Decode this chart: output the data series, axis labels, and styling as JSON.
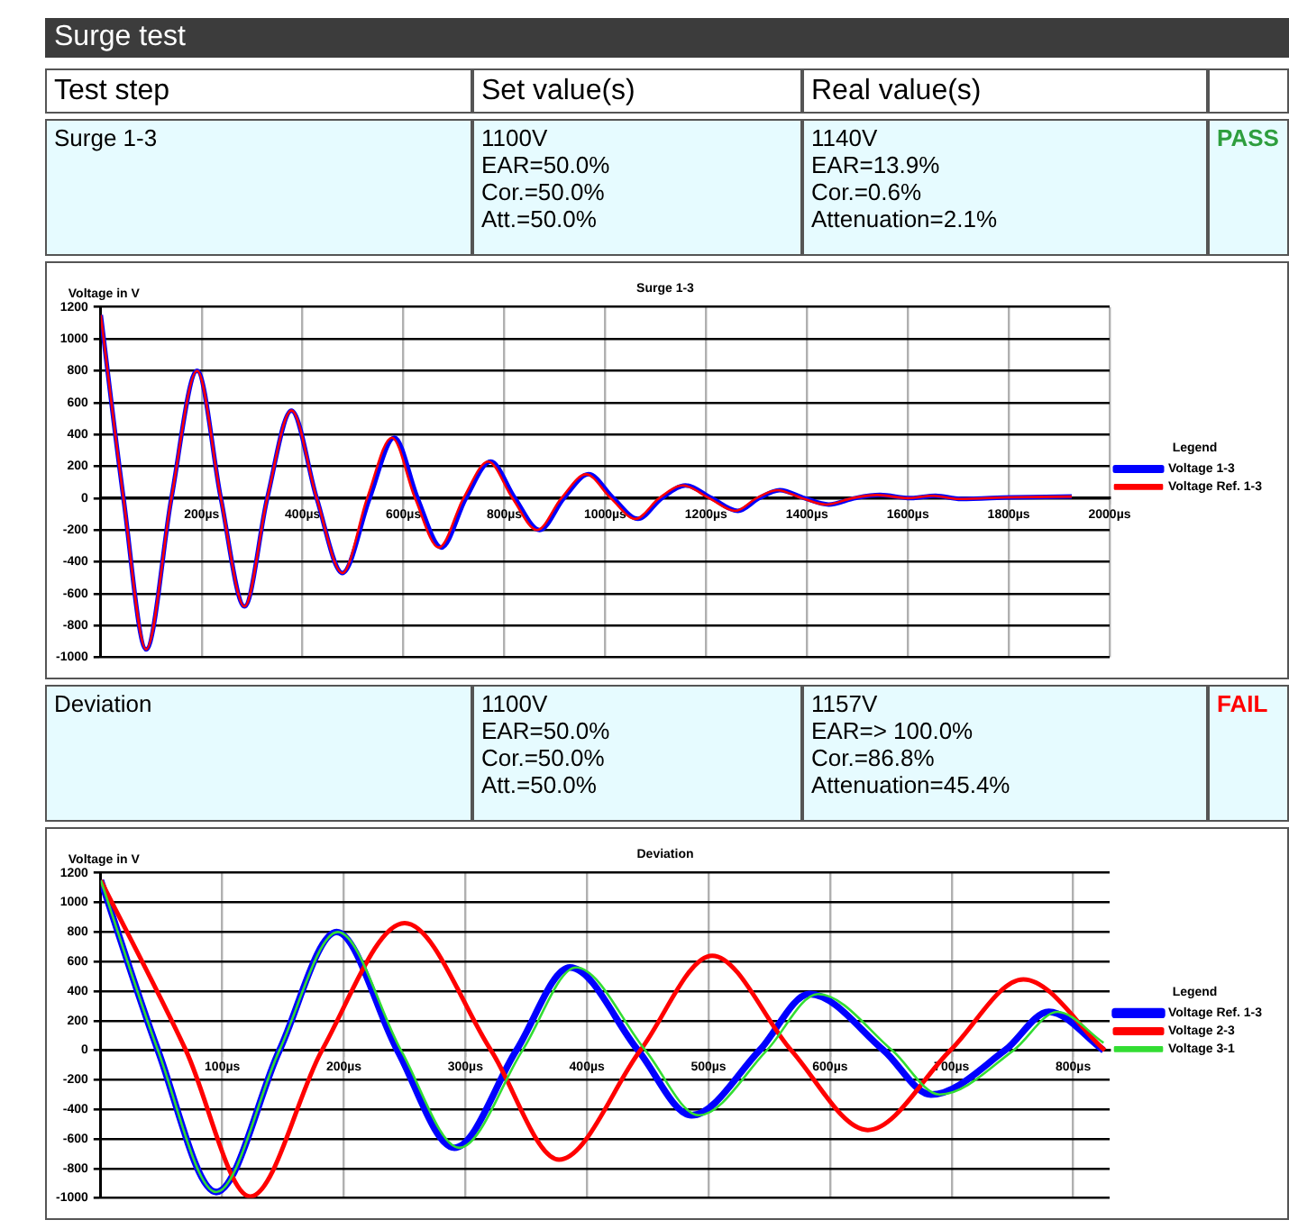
{
  "chart_data": [
    {
      "type": "other",
      "title": "Surge test",
      "categories": [
        "Test step",
        "Set value(s)",
        "Real value(s)",
        null
      ],
      "annotations": [
        "Surge 1-3",
        "1100V\nEAR=50.0%\nCor.=50.0%\nAtt.=50.0%",
        "1140V\nEAR=13.9%\nCor.=0.6%\nAttenuation=2.1%",
        "PASS"
      ],
      "colors": [
        null,
        null,
        null,
        "#2e9e3e"
      ]
    },
    {
      "type": "line",
      "title": "Surge 1-3",
      "ylabel": "Voltage in V",
      "legend_title": "Legend",
      "legend": "right",
      "grid": true,
      "xlim": [
        0,
        2000
      ],
      "xticks": [
        {
          "value": 200,
          "label": "200µs"
        },
        {
          "value": 400,
          "label": "400µs"
        },
        {
          "value": 600,
          "label": "600µs"
        },
        {
          "value": 800,
          "label": "800µs"
        },
        {
          "value": 1000,
          "label": "1000µs"
        },
        {
          "value": 1200,
          "label": "1200µs"
        },
        {
          "value": 1400,
          "label": "1400µs"
        },
        {
          "value": 1600,
          "label": "1600µs"
        },
        {
          "value": 1800,
          "label": "1800µs"
        },
        {
          "value": 2000,
          "label": "2000µs"
        }
      ],
      "ylim": [
        -1000,
        1200
      ],
      "yticks": [
        -1000,
        -800,
        -600,
        -400,
        -200,
        0,
        200,
        400,
        600,
        800,
        1000,
        1200
      ],
      "series": [
        {
          "name": "Voltage 1-3",
          "color": "#0000ff",
          "x": [
            0,
            45,
            90,
            140,
            191,
            238,
            285,
            330,
            378,
            428,
            479,
            533,
            582,
            628,
            675,
            724,
            773,
            821,
            870,
            918,
            967,
            1016,
            1065,
            1112,
            1159,
            1211,
            1263,
            1305,
            1346,
            1395,
            1443,
            1495,
            1545,
            1605,
            1655,
            1705,
            1805,
            1925
          ],
          "values": [
            1150,
            0,
            -950,
            0,
            800,
            0,
            -680,
            0,
            550,
            0,
            -470,
            0,
            380,
            0,
            -310,
            0,
            230,
            0,
            -200,
            0,
            150,
            0,
            -130,
            0,
            80,
            0,
            -80,
            0,
            50,
            0,
            -40,
            0,
            20,
            0,
            15,
            -5,
            5,
            10
          ]
        },
        {
          "name": "Voltage Ref. 1-3",
          "color": "#ff0000",
          "x": [
            0,
            45,
            90,
            140,
            191,
            238,
            285,
            330,
            378,
            428,
            479,
            528,
            577,
            623,
            670,
            719,
            768,
            816,
            865,
            913,
            962,
            1011,
            1060,
            1107,
            1154,
            1206,
            1258,
            1300,
            1341,
            1390,
            1438,
            1490,
            1540,
            1600,
            1650,
            1700,
            1800,
            1925
          ],
          "values": [
            1150,
            0,
            -950,
            0,
            800,
            0,
            -680,
            0,
            550,
            0,
            -470,
            0,
            380,
            0,
            -310,
            0,
            230,
            0,
            -200,
            0,
            150,
            0,
            -130,
            0,
            80,
            0,
            -80,
            0,
            50,
            0,
            -40,
            0,
            20,
            0,
            15,
            -5,
            5,
            10
          ]
        }
      ]
    },
    {
      "type": "other",
      "annotations": [
        "Deviation",
        "1100V\nEAR=50.0%\nCor.=50.0%\nAtt.=50.0%",
        "1157V\nEAR=> 100.0%\nCor.=86.8%\nAttenuation=45.4%",
        "FAIL"
      ],
      "colors": [
        null,
        null,
        null,
        "#ff0000"
      ]
    },
    {
      "type": "line",
      "title": "Deviation",
      "ylabel": "Voltage in V",
      "legend_title": "Legend",
      "legend": "right",
      "grid": true,
      "xlim": [
        0,
        830
      ],
      "xticks": [
        {
          "value": 100,
          "label": "100µs"
        },
        {
          "value": 200,
          "label": "200µs"
        },
        {
          "value": 300,
          "label": "300µs"
        },
        {
          "value": 400,
          "label": "400µs"
        },
        {
          "value": 500,
          "label": "500µs"
        },
        {
          "value": 600,
          "label": "600µs"
        },
        {
          "value": 700,
          "label": "700µs"
        },
        {
          "value": 800,
          "label": "800µs"
        }
      ],
      "ylim": [
        -1000,
        1200
      ],
      "yticks": [
        -1000,
        -800,
        -600,
        -400,
        -200,
        0,
        200,
        400,
        600,
        800,
        1000,
        1200
      ],
      "series": [
        {
          "name": "Voltage Ref. 1-3",
          "color": "#0000ff",
          "x": [
            0,
            47,
            95,
            147,
            194,
            244,
            291,
            342,
            386,
            442,
            486,
            542,
            583,
            644,
            683,
            744,
            780,
            825
          ],
          "values": [
            1150,
            0,
            -960,
            0,
            800,
            0,
            -660,
            0,
            560,
            0,
            -440,
            0,
            380,
            0,
            -300,
            0,
            260,
            0
          ]
        },
        {
          "name": "Voltage 2-3",
          "color": "#ff0000",
          "x": [
            0,
            70,
            123,
            182,
            250,
            321,
            377,
            444,
            503,
            568,
            631,
            699,
            759,
            826
          ],
          "values": [
            1150,
            0,
            -990,
            0,
            860,
            0,
            -740,
            0,
            640,
            0,
            -540,
            0,
            480,
            0
          ]
        },
        {
          "name": "Voltage 3-1",
          "color": "#33dd33",
          "x": [
            0,
            47,
            95,
            147,
            195,
            247,
            295,
            347,
            391,
            448,
            492,
            548,
            590,
            651,
            690,
            751,
            787,
            825
          ],
          "values": [
            1150,
            0,
            -960,
            0,
            800,
            0,
            -660,
            0,
            560,
            0,
            -440,
            0,
            380,
            0,
            -300,
            0,
            260,
            50
          ]
        }
      ]
    }
  ]
}
